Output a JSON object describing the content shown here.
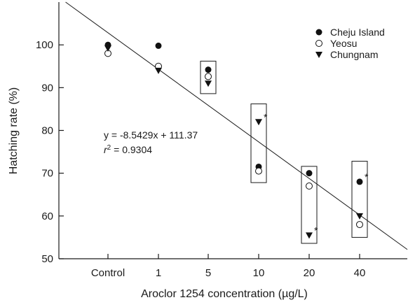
{
  "chart_data": {
    "type": "scatter",
    "xlabel": "Aroclor 1254 concentration (µg/L)",
    "ylabel": "Hatching rate (%)",
    "categories": [
      "Control",
      "1",
      "5",
      "10",
      "20",
      "40"
    ],
    "ylim": [
      50,
      110
    ],
    "yticks": [
      50,
      60,
      70,
      80,
      90,
      100
    ],
    "grid": false,
    "legend_position": "top-right",
    "series": [
      {
        "name": "Cheju Island",
        "marker": "filled-circle",
        "values": [
          100,
          99.8,
          94.2,
          71.5,
          70,
          68
        ]
      },
      {
        "name": "Yeosu",
        "marker": "open-circle",
        "values": [
          98,
          95,
          92.6,
          70.5,
          67,
          58
        ]
      },
      {
        "name": "Chungnam",
        "marker": "filled-triangle-down",
        "values": [
          99.2,
          94,
          91,
          82,
          55.5,
          60
        ]
      }
    ],
    "trendline": {
      "slope": -8.5429,
      "intercept": 111.37,
      "equation": "y = -8.5429x + 111.37",
      "r2_label": "r",
      "r2_sup": "2",
      "r2_value": " = 0.9304"
    },
    "boxes": [
      {
        "category": "5",
        "y_top": 96.2,
        "y_bottom": 88.6
      },
      {
        "category": "10",
        "y_top": 86.2,
        "y_bottom": 67.8
      },
      {
        "category": "20",
        "y_top": 71.6,
        "y_bottom": 53.6
      },
      {
        "category": "40",
        "y_top": 72.8,
        "y_bottom": 55
      }
    ],
    "significance": [
      {
        "category": "10",
        "series": "Chungnam",
        "label": "*"
      },
      {
        "category": "20",
        "series": "Chungnam",
        "label": "*"
      },
      {
        "category": "40",
        "series": "Cheju Island",
        "label": "*"
      }
    ]
  }
}
